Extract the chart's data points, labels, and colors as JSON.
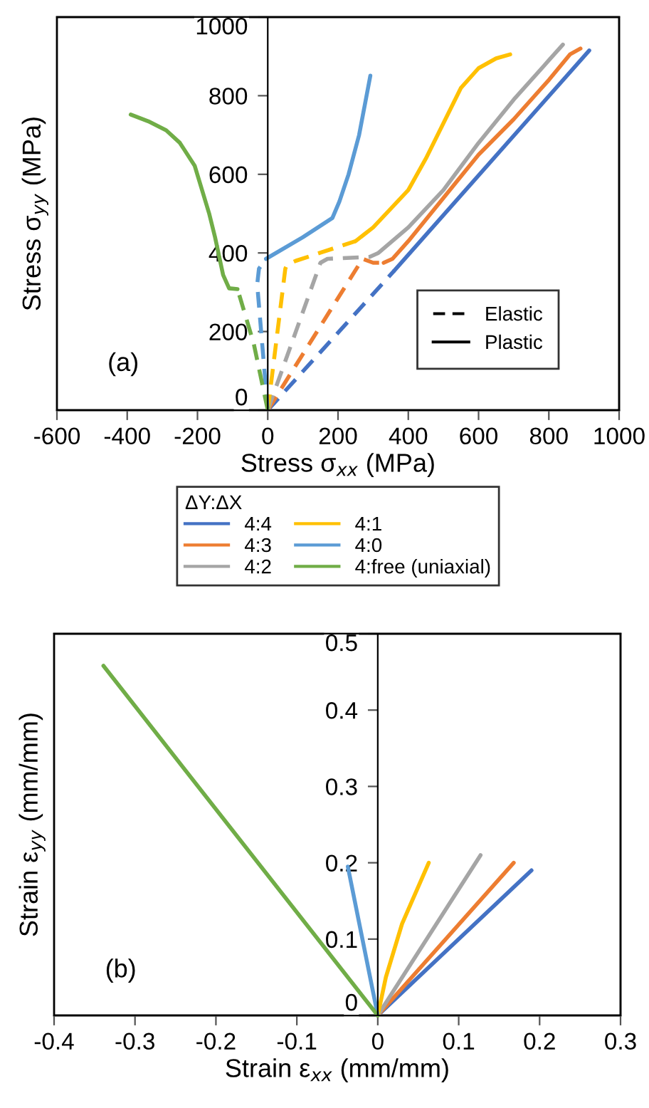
{
  "chart_data": [
    {
      "type": "line",
      "xlabel": "Stress σ$_{xx}$ (MPa)",
      "ylabel": "Stress σ$_{yy}$ (MPa)",
      "annotations": [
        "(a)",
        "Elastic",
        "Plastic"
      ],
      "xlim": [
        -600,
        1000
      ],
      "xticks": [
        -600,
        -400,
        -200,
        0,
        200,
        400,
        600,
        800,
        1000
      ],
      "ylim": [
        0,
        1000
      ],
      "yticks": [
        0,
        200,
        400,
        600,
        800,
        1000
      ],
      "grid": false,
      "legend": "bottom",
      "legend_title": "ΔY:ΔX",
      "marker": "none",
      "series": [
        {
          "color": "#4472c4",
          "line_style": "dashed",
          "x": [
            0,
            360
          ],
          "values": [
            0,
            355
          ]
        },
        {
          "name": "4:4",
          "color": "#4472c4",
          "line_style": "solid",
          "x": [
            360,
            915
          ],
          "values": [
            355,
            915
          ]
        },
        {
          "color": "#ed7d31",
          "line_style": "dashed",
          "x": [
            0,
            270,
            300,
            330
          ],
          "values": [
            0,
            385,
            375,
            375
          ]
        },
        {
          "name": "4:3",
          "color": "#ed7d31",
          "line_style": "solid",
          "x": [
            330,
            355,
            400,
            500,
            600,
            700,
            800,
            860,
            890
          ],
          "values": [
            375,
            385,
            430,
            540,
            650,
            740,
            840,
            905,
            920
          ]
        },
        {
          "color": "#a5a5a5",
          "line_style": "dashed",
          "x": [
            0,
            150,
            170,
            290,
            315
          ],
          "values": [
            0,
            375,
            385,
            390,
            400
          ]
        },
        {
          "name": "4:2",
          "color": "#a5a5a5",
          "line_style": "solid",
          "x": [
            315,
            400,
            500,
            600,
            700,
            800,
            840
          ],
          "values": [
            400,
            465,
            560,
            680,
            790,
            890,
            930
          ]
        },
        {
          "color": "#ffc000",
          "line_style": "dashed",
          "x": [
            0,
            50,
            55,
            80,
            250
          ],
          "values": [
            0,
            360,
            370,
            380,
            430
          ]
        },
        {
          "name": "4:1",
          "color": "#ffc000",
          "line_style": "solid",
          "x": [
            250,
            300,
            400,
            450,
            500,
            550,
            600,
            650,
            690
          ],
          "values": [
            430,
            465,
            560,
            640,
            730,
            820,
            870,
            895,
            905
          ]
        },
        {
          "color": "#5b9bd5",
          "line_style": "dashed",
          "x": [
            0,
            -30,
            -25,
            -5
          ],
          "values": [
            0,
            320,
            360,
            385
          ]
        },
        {
          "name": "4:0",
          "color": "#5b9bd5",
          "line_style": "solid",
          "x": [
            -5,
            100,
            184,
            204,
            230,
            260,
            292
          ],
          "values": [
            385,
            440,
            489,
            531,
            600,
            700,
            851
          ]
        },
        {
          "color": "#70ad47",
          "line_style": "dashed",
          "x": [
            0,
            -40,
            -70,
            -86
          ],
          "values": [
            0,
            170,
            260,
            308
          ]
        },
        {
          "name": "4:free (uniaxial)",
          "color": "#70ad47",
          "line_style": "solid",
          "x": [
            -86,
            -110,
            -127,
            -150,
            -167,
            -208,
            -250,
            -289,
            -340,
            -390
          ],
          "values": [
            308,
            310,
            344,
            440,
            501,
            622,
            680,
            712,
            735,
            752
          ]
        }
      ]
    },
    {
      "type": "line",
      "xlabel": "Strain ε$_{xx}$ (mm/mm)",
      "ylabel": "Strain ε$_{yy}$ (mm/mm)",
      "annotations": [
        "(b)"
      ],
      "xlim": [
        -0.4,
        0.3
      ],
      "xticks": [
        -0.4,
        -0.3,
        -0.2,
        -0.1,
        0,
        0.1,
        0.2,
        0.3
      ],
      "ylim": [
        0,
        0.5
      ],
      "yticks": [
        0,
        0.1,
        0.2,
        0.3,
        0.4,
        0.5
      ],
      "grid": false,
      "legend": false,
      "marker": "none",
      "series": [
        {
          "color": "#4472c4",
          "line_style": "solid",
          "x": [
            0,
            0.19
          ],
          "values": [
            0,
            0.19
          ]
        },
        {
          "color": "#ed7d31",
          "line_style": "solid",
          "x": [
            0,
            0.168
          ],
          "values": [
            0,
            0.2
          ]
        },
        {
          "color": "#a5a5a5",
          "line_style": "solid",
          "x": [
            0,
            0.127
          ],
          "values": [
            0,
            0.21
          ]
        },
        {
          "color": "#ffc000",
          "line_style": "solid",
          "x": [
            0,
            0.01,
            0.03,
            0.063
          ],
          "values": [
            0,
            0.05,
            0.12,
            0.2
          ]
        },
        {
          "color": "#5b9bd5",
          "line_style": "solid",
          "x": [
            0,
            -0.037
          ],
          "values": [
            0,
            0.195
          ]
        },
        {
          "color": "#70ad47",
          "line_style": "solid",
          "x": [
            0,
            -0.339
          ],
          "values": [
            0,
            0.458
          ]
        }
      ]
    }
  ]
}
